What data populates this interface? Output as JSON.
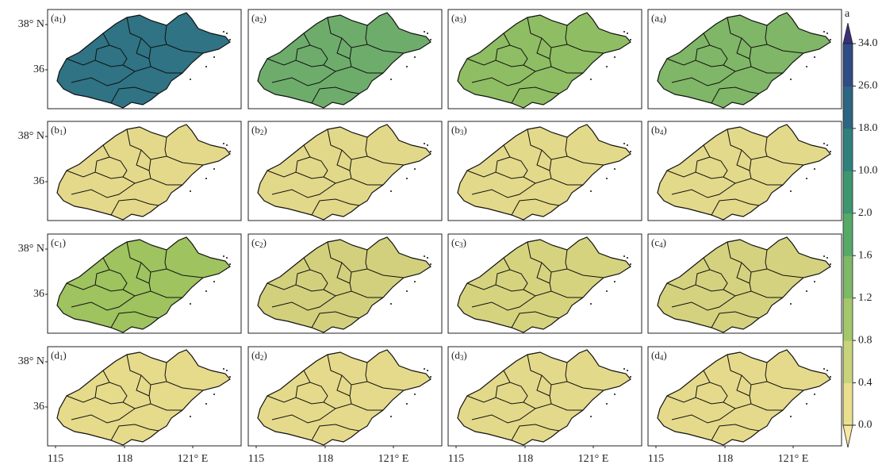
{
  "panels": [
    {
      "label": [
        "(a",
        "1",
        ")"
      ],
      "color": "#2f7384"
    },
    {
      "label": [
        "(a",
        "2",
        ")"
      ],
      "color": "#6eac6c"
    },
    {
      "label": [
        "(a",
        "3",
        ")"
      ],
      "color": "#8fbd63"
    },
    {
      "label": [
        "(a",
        "4",
        ")"
      ],
      "color": "#80b667"
    },
    {
      "label": [
        "(b",
        "1",
        ")"
      ],
      "color": "#e4d98a"
    },
    {
      "label": [
        "(b",
        "2",
        ")"
      ],
      "color": "#e2d889"
    },
    {
      "label": [
        "(b",
        "3",
        ")"
      ],
      "color": "#e3d98a"
    },
    {
      "label": [
        "(b",
        "4",
        ")"
      ],
      "color": "#e3d98a"
    },
    {
      "label": [
        "(c",
        "1",
        ")"
      ],
      "color": "#9ec35f"
    },
    {
      "label": [
        "(c",
        "2",
        ")"
      ],
      "color": "#d2d07c"
    },
    {
      "label": [
        "(c",
        "3",
        ")"
      ],
      "color": "#d6d37f"
    },
    {
      "label": [
        "(c",
        "4",
        ")"
      ],
      "color": "#d4d27e"
    },
    {
      "label": [
        "(d",
        "1",
        ")"
      ],
      "color": "#e6da8b"
    },
    {
      "label": [
        "(d",
        "2",
        ")"
      ],
      "color": "#e5da8b"
    },
    {
      "label": [
        "(d",
        "3",
        ")"
      ],
      "color": "#e3d98a"
    },
    {
      "label": [
        "(d",
        "4",
        ")"
      ],
      "color": "#e5da8b"
    }
  ],
  "y_labels": [
    "38° N",
    "36"
  ],
  "x_labels": [
    "115",
    "118",
    "121° E"
  ],
  "colorbar": {
    "label": "a",
    "ticks": [
      "0.0",
      "0.4",
      "0.8",
      "1.2",
      "1.6",
      "2.0",
      "10.0",
      "18.0",
      "26.0",
      "34.0"
    ],
    "colors": [
      "#ebdf8f",
      "#c9d37b",
      "#a5c76b",
      "#7db966",
      "#57a967",
      "#3c9670",
      "#2f807c",
      "#2c6682",
      "#2f4c86"
    ],
    "under": "#f6e8a0",
    "over": "#3a2f7a"
  }
}
